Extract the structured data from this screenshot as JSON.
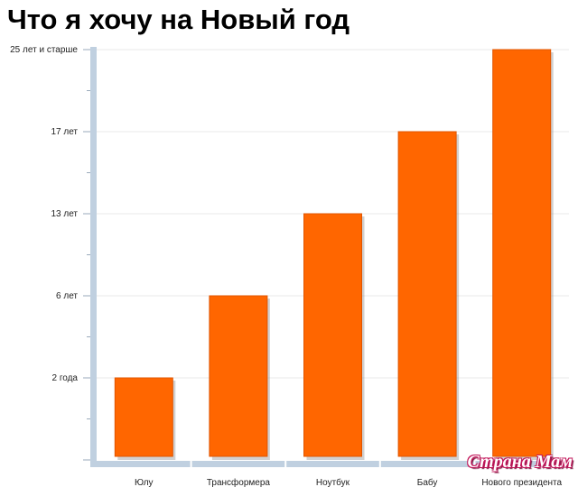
{
  "page": {
    "title": "Что я хочу на Новый год",
    "watermark": "Страна Мам"
  },
  "colors": {
    "bar": "#ff6600",
    "axis": "#c0d0e0",
    "grid": "#e8e8e8"
  },
  "chart_data": {
    "type": "bar",
    "title": "Что я хочу на Новый год",
    "xlabel": "",
    "ylabel": "",
    "categories": [
      "Юлу",
      "Трансформера",
      "Ноутбук",
      "Бабу",
      "Нового президента"
    ],
    "values": [
      1,
      2,
      3,
      4,
      5
    ],
    "ylim": [
      0,
      5
    ],
    "yticks": [
      {
        "value": 1,
        "label": "2 года"
      },
      {
        "value": 2,
        "label": "6 лет"
      },
      {
        "value": 3,
        "label": "13 лет"
      },
      {
        "value": 4,
        "label": "17 лет"
      },
      {
        "value": 5,
        "label": "25 лет и старше"
      }
    ],
    "grid": true,
    "legend": "none"
  }
}
